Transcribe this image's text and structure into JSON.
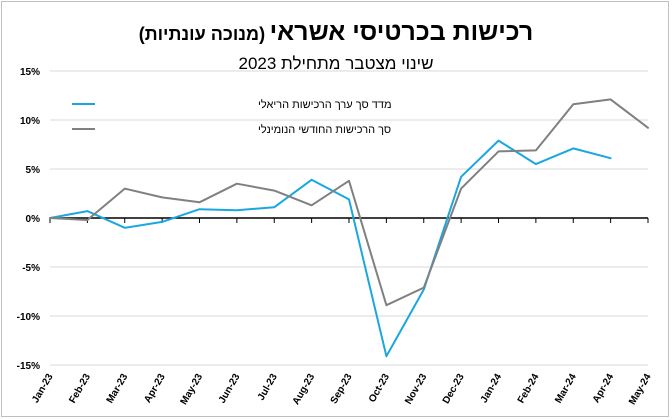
{
  "chart_data": {
    "type": "line",
    "title": "רכישות בכרטיסי אשראי",
    "title_note": "(מנוכה עונתיות)",
    "subtitle": "שינוי מצטבר מתחילת 2023",
    "xlabel": "",
    "ylabel": "",
    "categories": [
      "Jan-23",
      "Feb-23",
      "Mar-23",
      "Apr-23",
      "May-23",
      "Jun-23",
      "Jul-23",
      "Aug-23",
      "Sep-23",
      "Oct-23",
      "Nov-23",
      "Dec-23",
      "Jan-24",
      "Feb-24",
      "Mar-24",
      "Apr-24",
      "May-24"
    ],
    "y_ticks": [
      15,
      10,
      5,
      0,
      -5,
      -10,
      -15
    ],
    "y_tick_labels": [
      "15%",
      "10%",
      "5%",
      "0%",
      "-5%",
      "-10%",
      "-15%"
    ],
    "ylim": [
      -15,
      15
    ],
    "grid": "horizontal",
    "legend_position": "top-left",
    "series": [
      {
        "name": "מדד סך ערך הרכישות הריאלי",
        "color": "#1aa7e0",
        "values": [
          0,
          0.7,
          -1.0,
          -0.4,
          0.9,
          0.8,
          1.1,
          3.9,
          1.9,
          -14.1,
          -7.3,
          4.2,
          7.9,
          5.5,
          7.1,
          6.1,
          null
        ]
      },
      {
        "name": "סך הרכישות החודשי הנומינלי",
        "color": "#808080",
        "values": [
          0,
          -0.2,
          3.0,
          2.1,
          1.6,
          3.5,
          2.8,
          1.3,
          3.8,
          -8.9,
          -7.1,
          3.0,
          6.8,
          6.9,
          11.6,
          12.1,
          9.2
        ]
      }
    ]
  }
}
